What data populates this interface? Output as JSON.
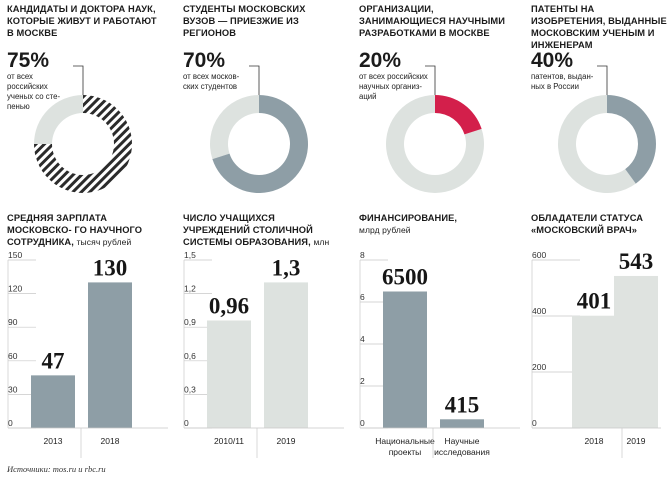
{
  "stats": [
    {
      "title": "Кандидаты и доктора наук, которые живут и работают в Москве",
      "percent_label": "75%",
      "value": 75,
      "note": "от всех российских ученых со сте- пенью"
    },
    {
      "title": "Студенты московских вузов — приезжие из регионов",
      "percent_label": "70%",
      "value": 70,
      "note": "от всех москов- ских студентов"
    },
    {
      "title": "Организации, занимающиеся научными разработками в Москве",
      "percent_label": "20%",
      "value": 20,
      "note": "от всех российских научных организ- аций"
    },
    {
      "title": "Патенты на изобретения, выданные московским ученым и инженерам",
      "percent_label": "40%",
      "value": 40,
      "note": "патентов, выдан- ных в России"
    }
  ],
  "colors": {
    "gray_dark": "#8e9ea6",
    "gray_light": "#dde2df",
    "accent": "#d31f4b",
    "hatch": "#2b2b2b"
  },
  "chart_data": [
    {
      "type": "bar",
      "title": "Средняя зарплата московско- го научного сотрудника,",
      "unit": "тысяч рублей",
      "categories": [
        "2013",
        "2018"
      ],
      "values": [
        47,
        130
      ],
      "value_labels": [
        "47",
        "130"
      ],
      "ylim": [
        0,
        150
      ],
      "yticks": [
        "0",
        "30",
        "60",
        "90",
        "120",
        "150"
      ],
      "tick_values": [
        0,
        30,
        60,
        90,
        120,
        150
      ]
    },
    {
      "type": "bar",
      "title": "Число учащихся учреждений столичной системы образования,",
      "unit": "млн",
      "categories": [
        "2010/11",
        "2019"
      ],
      "values": [
        0.96,
        1.3
      ],
      "value_labels": [
        "0,96",
        "1,3"
      ],
      "ylim": [
        0,
        1.5
      ],
      "yticks": [
        "0",
        "0,3",
        "0,6",
        "0,9",
        "1,2",
        "1,5"
      ],
      "tick_values": [
        0,
        0.3,
        0.6,
        0.9,
        1.2,
        1.5
      ]
    },
    {
      "type": "bar",
      "title": "Финансирование,",
      "unit": "млрд рублей",
      "categories": [
        "Национальные проекты",
        "Научные исследования"
      ],
      "values": [
        6500,
        415
      ],
      "value_labels": [
        "6500",
        "415"
      ],
      "ylim": [
        0,
        8000
      ],
      "yticks": [
        "0",
        "2",
        "4",
        "6",
        "8"
      ],
      "tick_values": [
        0,
        2000,
        4000,
        6000,
        8000
      ]
    },
    {
      "type": "bar",
      "title": "Обладатели статуса «Московский врач»",
      "unit": "",
      "categories": [
        "2018",
        "2019"
      ],
      "values": [
        401,
        543
      ],
      "value_labels": [
        "401",
        "543"
      ],
      "ylim": [
        0,
        600
      ],
      "yticks": [
        "0",
        "200",
        "400",
        "600"
      ],
      "tick_values": [
        0,
        200,
        400,
        600
      ]
    }
  ],
  "source": "Источники: mos.ru и rbc.ru"
}
